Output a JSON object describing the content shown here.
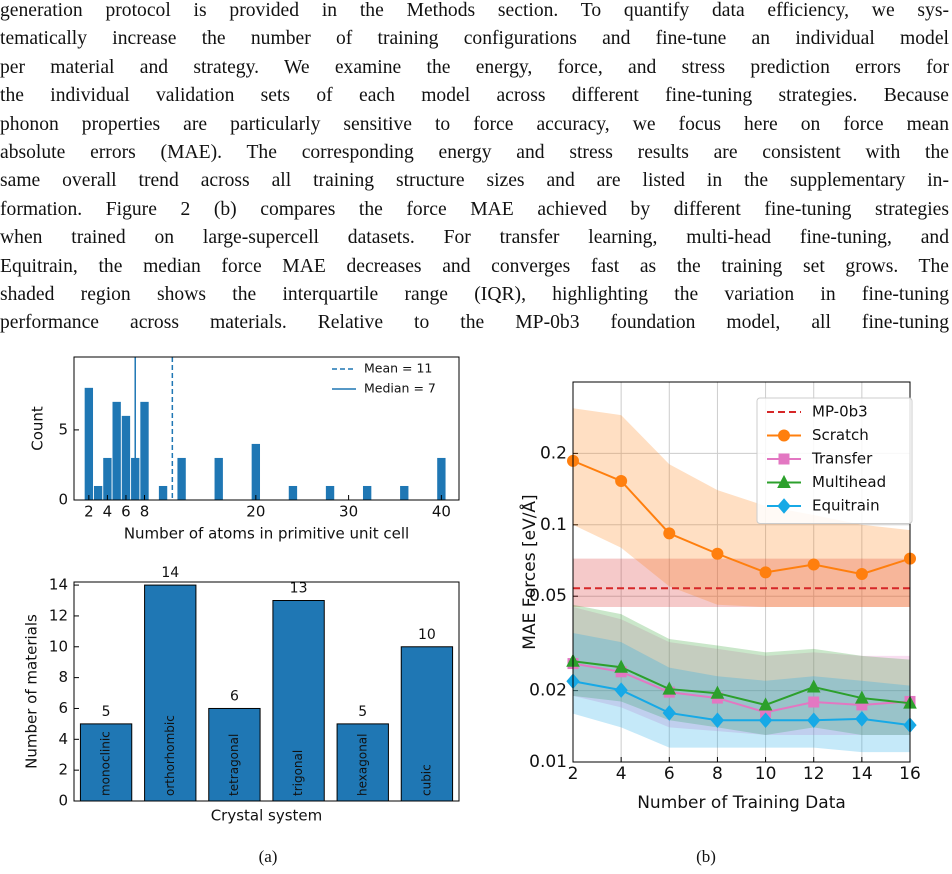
{
  "paragraph": {
    "lines": [
      "generation protocol is provided in the Methods section. To quantify data efficiency, we sys-",
      "tematically increase the number of training configurations and fine-tune an individual model",
      "per material and strategy. We examine the energy, force, and stress prediction errors for",
      "the individual validation sets of each model across different fine-tuning strategies. Because",
      "phonon properties are particularly sensitive to force accuracy, we focus here on force mean",
      "absolute errors (MAE). The corresponding energy and stress results are consistent with the",
      "same overall trend across all training structure sizes and are listed in the supplementary in-",
      "formation. Figure 2 (b) compares the force MAE achieved by different fine-tuning strategies",
      "when trained on large-supercell datasets. For transfer learning, multi-head fine-tuning, and",
      "Equitrain, the median force MAE decreases and converges fast as the training set grows. The",
      "shaded region shows the interquartile range (IQR), highlighting the variation in fine-tuning",
      "performance across materials. Relative to the MP-0b3 foundation model, all fine-tuning"
    ]
  },
  "captions": [
    "(a)",
    "(b)"
  ],
  "chart_data": [
    {
      "type": "histogram",
      "x_label": "Number of atoms in primitive unit cell",
      "y_label": "Count",
      "x": [
        2,
        3,
        4,
        5,
        6,
        7,
        8,
        10,
        12,
        16,
        20,
        24,
        28,
        32,
        36,
        40
      ],
      "values": [
        8,
        1,
        3,
        7,
        6,
        3,
        7,
        1,
        3,
        3,
        4,
        1,
        1,
        1,
        1,
        3
      ],
      "color": "#1f77b4",
      "mean": {
        "value": 11,
        "label": "Mean = 11"
      },
      "median": {
        "value": 7,
        "label": "Median = 7"
      },
      "xlim": [
        0.4,
        41.9
      ],
      "xticks": [
        2,
        4,
        6,
        8,
        20,
        30,
        40
      ],
      "ylim": [
        0,
        10.2
      ],
      "yticks": [
        0,
        5
      ],
      "legend": "upper right"
    },
    {
      "type": "bar",
      "x_label": "Crystal system",
      "y_label": "Number of materials",
      "categories": [
        "monoclinic",
        "orthorhombic",
        "tetragonal",
        "trigonal",
        "hexagonal",
        "cubic"
      ],
      "values": [
        5,
        14,
        6,
        13,
        5,
        10
      ],
      "color": "#1f77b4",
      "ylim": [
        0,
        14.2
      ],
      "yticks": [
        0,
        2,
        4,
        6,
        8,
        10,
        12,
        14
      ]
    },
    {
      "type": "line",
      "x_label": "Number of Training Data",
      "y_label": "MAE Forces [eV/Å]",
      "x": [
        2,
        4,
        6,
        8,
        10,
        12,
        14,
        16
      ],
      "log_y": true,
      "grid": true,
      "legend": "upper right",
      "xlim": [
        2,
        16
      ],
      "xticks": [
        2,
        4,
        6,
        8,
        10,
        12,
        14,
        16
      ],
      "ylim": [
        0.01,
        0.4
      ],
      "yticks": [
        0.01,
        0.02,
        0.05,
        0.1,
        0.2
      ],
      "series": [
        {
          "name": "MP-0b3",
          "color": "#d62728",
          "marker": "none",
          "dashed": true,
          "values": [
            0.054,
            0.054,
            0.054,
            0.054,
            0.054,
            0.054,
            0.054,
            0.054
          ],
          "q1": [
            0.045,
            0.045,
            0.045,
            0.045,
            0.045,
            0.045,
            0.045,
            0.045
          ],
          "q3": [
            0.072,
            0.072,
            0.072,
            0.072,
            0.072,
            0.072,
            0.072,
            0.072
          ]
        },
        {
          "name": "Scratch",
          "color": "#ff7f0e",
          "marker": "circle",
          "values": [
            0.186,
            0.153,
            0.092,
            0.0755,
            0.063,
            0.068,
            0.062,
            0.072
          ],
          "q1": [
            0.1,
            0.08,
            0.055,
            0.046,
            0.045,
            0.045,
            0.045,
            0.045
          ],
          "q3": [
            0.31,
            0.29,
            0.18,
            0.14,
            0.12,
            0.11,
            0.1,
            0.095
          ]
        },
        {
          "name": "Transfer",
          "color": "#e377c2",
          "marker": "square",
          "values": [
            0.026,
            0.024,
            0.0197,
            0.0186,
            0.0162,
            0.0179,
            0.0174,
            0.018
          ],
          "q1": [
            0.019,
            0.017,
            0.014,
            0.0135,
            0.013,
            0.013,
            0.013,
            0.013
          ],
          "q3": [
            0.045,
            0.04,
            0.032,
            0.03,
            0.028,
            0.029,
            0.028,
            0.028
          ]
        },
        {
          "name": "Multihead",
          "color": "#2ca02c",
          "marker": "triangle",
          "values": [
            0.0266,
            0.0251,
            0.0203,
            0.0195,
            0.0174,
            0.0207,
            0.0186,
            0.0177
          ],
          "q1": [
            0.019,
            0.018,
            0.015,
            0.014,
            0.013,
            0.014,
            0.013,
            0.013
          ],
          "q3": [
            0.046,
            0.042,
            0.033,
            0.031,
            0.029,
            0.03,
            0.028,
            0.027
          ]
        },
        {
          "name": "Equitrain",
          "color": "#17a9e6",
          "marker": "diamond",
          "values": [
            0.0219,
            0.0201,
            0.0161,
            0.015,
            0.015,
            0.015,
            0.0152,
            0.0143
          ],
          "q1": [
            0.016,
            0.014,
            0.0115,
            0.0115,
            0.0115,
            0.0115,
            0.011,
            0.011
          ],
          "q3": [
            0.035,
            0.032,
            0.025,
            0.023,
            0.022,
            0.023,
            0.022,
            0.021
          ]
        }
      ]
    }
  ]
}
